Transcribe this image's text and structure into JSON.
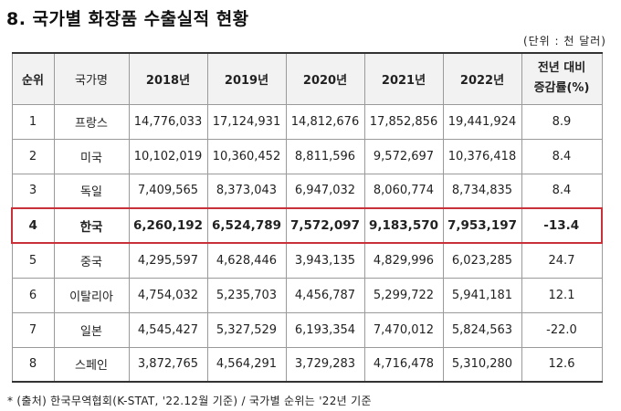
{
  "title": "8. 국가별 화장품 수출실적 현황",
  "unit": "(단위 : 천 달러)",
  "table": {
    "headers": [
      "순위",
      "국가명",
      "2018년",
      "2019년",
      "2020년",
      "2021년",
      "2022년"
    ],
    "change_header_line1": "전년 대비",
    "change_header_line2": "증감률(%)",
    "rows": [
      [
        "1",
        "프랑스",
        "14,776,033",
        "17,124,931",
        "14,812,676",
        "17,852,856",
        "19,441,924",
        "8.9"
      ],
      [
        "2",
        "미국",
        "10,102,019",
        "10,360,452",
        "8,811,596",
        "9,572,697",
        "10,376,418",
        "8.4"
      ],
      [
        "3",
        "독일",
        "7,409,565",
        "8,373,043",
        "6,947,032",
        "8,060,774",
        "8,734,835",
        "8.4"
      ],
      [
        "4",
        "한국",
        "6,260,192",
        "6,524,789",
        "7,572,097",
        "9,183,570",
        "7,953,197",
        "-13.4"
      ],
      [
        "5",
        "중국",
        "4,295,597",
        "4,628,446",
        "3,943,135",
        "4,829,996",
        "6,023,285",
        "24.7"
      ],
      [
        "6",
        "이탈리아",
        "4,754,032",
        "5,235,703",
        "4,456,787",
        "5,299,722",
        "5,941,181",
        "12.1"
      ],
      [
        "7",
        "일본",
        "4,545,427",
        "5,327,529",
        "6,193,354",
        "7,470,012",
        "5,824,563",
        "-22.0"
      ],
      [
        "8",
        "스페인",
        "3,872,765",
        "4,564,291",
        "3,729,283",
        "4,716,478",
        "5,310,280",
        "12.6"
      ]
    ]
  },
  "footnote": "* (출처) 한국무역협회(K-STAT, '22.12월 기준) / 국가별 순위는 '22년 기준"
}
